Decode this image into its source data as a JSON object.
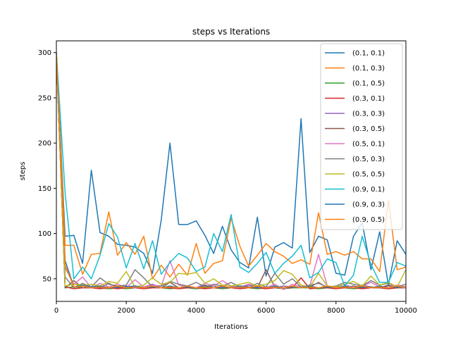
{
  "chart_data": {
    "type": "line",
    "title": "steps vs Iterations",
    "xlabel": "Iterations",
    "ylabel": "steps",
    "xlim": [
      0,
      10000
    ],
    "ylim": [
      25,
      313
    ],
    "xticks": [
      0,
      2000,
      4000,
      6000,
      8000,
      10000
    ],
    "yticks": [
      50,
      100,
      150,
      200,
      250,
      300
    ],
    "legend_position": "upper-right",
    "x": [
      0,
      250,
      500,
      750,
      1000,
      1250,
      1500,
      1750,
      2000,
      2250,
      2500,
      2750,
      3000,
      3250,
      3500,
      3750,
      4000,
      4250,
      4500,
      4750,
      5000,
      5250,
      5500,
      5750,
      6000,
      6250,
      6500,
      6750,
      7000,
      7250,
      7500,
      7750,
      8000,
      8250,
      8500,
      8750,
      9000,
      9250,
      9500,
      9750,
      10000
    ],
    "series": [
      {
        "name": "(0.1, 0.1)",
        "color": "#1f77b4",
        "values": [
          300,
          97,
          98,
          67,
          170,
          101,
          97,
          88,
          87,
          85,
          78,
          56,
          115,
          200,
          110,
          110,
          114,
          98,
          78,
          108,
          82,
          68,
          62,
          118,
          53,
          85,
          90,
          84,
          227,
          79,
          97,
          93,
          56,
          54,
          97,
          112,
          60,
          102,
          43,
          92,
          77
        ]
      },
      {
        "name": "(0.1, 0.3)",
        "color": "#ff7f0e",
        "values": [
          300,
          87,
          87,
          55,
          77,
          78,
          124,
          76,
          90,
          77,
          97,
          50,
          65,
          52,
          66,
          54,
          89,
          56,
          67,
          70,
          117,
          86,
          64,
          76,
          89,
          80,
          75,
          67,
          71,
          66,
          123,
          77,
          80,
          76,
          80,
          72,
          72,
          58,
          137,
          60,
          63
        ]
      },
      {
        "name": "(0.1, 0.5)",
        "color": "#2ca02c",
        "values": [
          300,
          40,
          41,
          40,
          40,
          40,
          39,
          40,
          39,
          40,
          40,
          40,
          40,
          39,
          40,
          40,
          39,
          40,
          40,
          39,
          40,
          40,
          40,
          39,
          40,
          40,
          39,
          40,
          40,
          40,
          39,
          40,
          40,
          40,
          39,
          40,
          40,
          40,
          39,
          40,
          40
        ]
      },
      {
        "name": "(0.3, 0.1)",
        "color": "#d62728",
        "values": [
          300,
          41,
          39,
          40,
          40,
          39,
          40,
          39,
          40,
          40,
          39,
          40,
          40,
          40,
          39,
          40,
          40,
          39,
          40,
          40,
          40,
          39,
          40,
          40,
          39,
          40,
          40,
          40,
          51,
          39,
          40,
          40,
          39,
          40,
          40,
          39,
          40,
          40,
          39,
          40,
          40
        ]
      },
      {
        "name": "(0.3, 0.3)",
        "color": "#9467bd",
        "values": [
          300,
          41,
          45,
          40,
          41,
          40,
          41,
          40,
          42,
          40,
          41,
          44,
          40,
          41,
          40,
          42,
          40,
          41,
          42,
          40,
          41,
          40,
          43,
          40,
          41,
          40,
          42,
          41,
          40,
          41,
          40,
          42,
          40,
          41,
          40,
          43,
          41,
          40,
          42,
          41,
          40
        ]
      },
      {
        "name": "(0.3, 0.5)",
        "color": "#8c564b",
        "values": [
          300,
          40,
          48,
          40,
          41,
          40,
          45,
          40,
          41,
          42,
          40,
          41,
          40,
          46,
          40,
          41,
          40,
          43,
          40,
          41,
          40,
          42,
          41,
          40,
          60,
          41,
          40,
          42,
          40,
          41,
          46,
          40,
          41,
          40,
          42,
          40,
          41,
          40,
          43,
          40,
          41
        ]
      },
      {
        "name": "(0.5, 0.1)",
        "color": "#e377c2",
        "values": [
          300,
          62,
          44,
          52,
          40,
          45,
          41,
          44,
          40,
          49,
          41,
          43,
          42,
          70,
          43,
          41,
          40,
          45,
          42,
          48,
          42,
          41,
          44,
          42,
          40,
          44,
          38,
          44,
          41,
          42,
          77,
          42,
          41,
          44,
          40,
          42,
          46,
          41,
          40,
          43,
          41
        ]
      },
      {
        "name": "(0.5, 0.3)",
        "color": "#7f7f7f",
        "values": [
          300,
          52,
          40,
          45,
          41,
          51,
          44,
          42,
          43,
          60,
          51,
          41,
          42,
          47,
          44,
          42,
          46,
          41,
          44,
          42,
          46,
          41,
          40,
          45,
          41,
          56,
          44,
          50,
          41,
          43,
          45,
          41,
          42,
          46,
          44,
          42,
          48,
          43,
          45,
          41,
          44
        ]
      },
      {
        "name": "(0.5, 0.5)",
        "color": "#bcbd22",
        "values": [
          300,
          42,
          44,
          43,
          44,
          42,
          47,
          45,
          58,
          41,
          43,
          51,
          44,
          46,
          56,
          55,
          57,
          45,
          50,
          43,
          42,
          44,
          46,
          42,
          44,
          48,
          59,
          55,
          43,
          41,
          56,
          42,
          41,
          44,
          47,
          42,
          53,
          43,
          46,
          41,
          60
        ]
      },
      {
        "name": "(0.9, 0.1)",
        "color": "#17becf",
        "values": [
          300,
          145,
          50,
          63,
          50,
          76,
          111,
          96,
          62,
          89,
          61,
          92,
          55,
          68,
          78,
          73,
          58,
          63,
          100,
          80,
          121,
          63,
          57,
          67,
          79,
          56,
          67,
          75,
          87,
          51,
          57,
          72,
          68,
          42,
          54,
          97,
          66,
          46,
          46,
          68,
          64
        ]
      },
      {
        "name": "(0.9, 0.3)",
        "color": "#1f77b4",
        "values": [
          300,
          70,
          41,
          43,
          41,
          42,
          40,
          41,
          41,
          42,
          40,
          41,
          40,
          42,
          40,
          41,
          40,
          42,
          40,
          41,
          40,
          42,
          40,
          41,
          40,
          42,
          40,
          41,
          40,
          42,
          40,
          41,
          40,
          42,
          40,
          41,
          40,
          42,
          40,
          41,
          40
        ]
      },
      {
        "name": "(0.9, 0.5)",
        "color": "#ff7f0e",
        "values": [
          300,
          65,
          41,
          42,
          40,
          41,
          40,
          42,
          40,
          41,
          40,
          42,
          40,
          41,
          40,
          42,
          40,
          41,
          40,
          42,
          40,
          41,
          40,
          42,
          40,
          41,
          40,
          42,
          40,
          41,
          40,
          42,
          40,
          41,
          40,
          42,
          40,
          41,
          40,
          42,
          40
        ]
      }
    ]
  }
}
